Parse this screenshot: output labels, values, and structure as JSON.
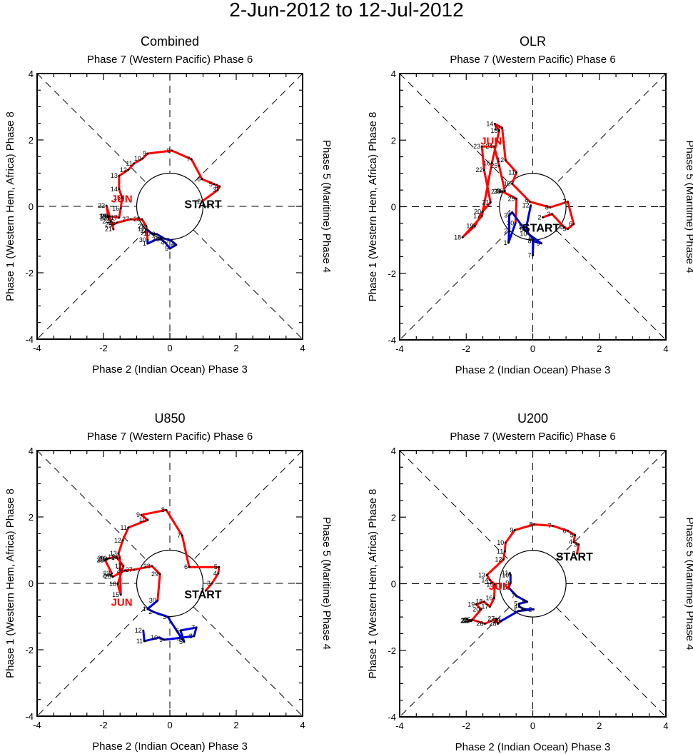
{
  "title": "2-Jun-2012 to 12-Jul-2012",
  "labels": {
    "top": "Phase 7 (Western Pacific) Phase 6",
    "bottom": "Phase 2 (Indian Ocean) Phase 3",
    "left": "Phase 1 (Western Hem, Africa) Phase 8",
    "right": "Phase 5 (Maritime) Phase 4",
    "start": "START",
    "june": "JUN"
  },
  "colors": {
    "june": "#ff0000",
    "july": "#0000dd",
    "axis": "#000000"
  },
  "chart_data": [
    {
      "type": "line",
      "title": "Combined",
      "xlim": [
        -4,
        4
      ],
      "ylim": [
        -4,
        4
      ],
      "xticks": [
        -4,
        -2,
        0,
        2,
        4
      ],
      "yticks": [
        -4,
        -2,
        0,
        2,
        4
      ],
      "june_label_pos": [
        -1.45,
        0.25
      ],
      "start_label_pos": [
        1.0,
        0.1
      ],
      "series": [
        {
          "name": "June",
          "days": [
            2,
            3,
            4,
            5,
            6,
            7,
            8,
            9,
            10,
            11,
            12,
            13,
            14,
            15,
            16,
            17,
            18,
            19,
            20,
            21,
            22,
            23,
            24,
            25,
            26,
            27,
            28,
            29,
            30
          ],
          "x": [
            0.97,
            1.44,
            1.5,
            1.33,
            0.97,
            0.65,
            0.06,
            -0.67,
            -0.82,
            -1.08,
            -1.25,
            -1.53,
            -1.53,
            -1.44,
            -1.48,
            -1.53,
            -1.85,
            -1.88,
            -1.82,
            -1.7,
            -1.91,
            -1.85,
            -1.78,
            -1.7,
            -1.59,
            -1.18,
            -0.84,
            -0.71,
            -0.67
          ],
          "y": [
            0.15,
            0.49,
            0.6,
            0.67,
            0.82,
            1.42,
            1.68,
            1.59,
            1.44,
            1.29,
            1.1,
            0.92,
            0.52,
            0.26,
            -0.06,
            -0.34,
            -0.3,
            -0.3,
            -0.3,
            -0.69,
            0.02,
            -0.35,
            -0.45,
            -0.55,
            -0.49,
            -0.39,
            -0.39,
            -0.6,
            -1.01
          ]
        },
        {
          "name": "July",
          "days": [
            1,
            2,
            3,
            4,
            5,
            6,
            7,
            8,
            9,
            10,
            11,
            12
          ],
          "x": [
            -0.67,
            -0.39,
            -0.26,
            -0.13,
            0.0,
            0.19,
            0.04,
            -0.17,
            -0.39,
            -0.54,
            -0.65,
            -0.71
          ],
          "y": [
            -1.12,
            -0.99,
            -0.99,
            -1.1,
            -1.27,
            -1.16,
            -1.03,
            -0.97,
            -0.84,
            -0.82,
            -0.73,
            -0.69
          ]
        }
      ]
    },
    {
      "type": "line",
      "title": "OLR",
      "xlim": [
        -4,
        4
      ],
      "ylim": [
        -4,
        4
      ],
      "xticks": [
        -4,
        -2,
        0,
        2,
        4
      ],
      "yticks": [
        -4,
        -2,
        0,
        2,
        4
      ],
      "june_label_pos": [
        -1.25,
        2.0
      ],
      "start_label_pos": [
        0.25,
        -0.6
      ],
      "series": [
        {
          "name": "June",
          "days": [
            2,
            3,
            4,
            5,
            6,
            7,
            8,
            9,
            10,
            11,
            12,
            13,
            14,
            15,
            16,
            17,
            18,
            19,
            20,
            21,
            22,
            23,
            24,
            25,
            26,
            27,
            28,
            29,
            30
          ],
          "x": [
            0.3,
            0.58,
            0.95,
            1.05,
            1.23,
            1.05,
            0.52,
            -0.09,
            -0.62,
            -0.49,
            -0.82,
            -0.92,
            -1.14,
            -1.01,
            -1.23,
            -1.53,
            -2.11,
            -1.74,
            -1.51,
            -1.27,
            -1.46,
            -1.53,
            -1.16,
            -1.01,
            -0.84,
            -1.0,
            -0.92,
            -0.49,
            -0.52
          ],
          "y": [
            -0.32,
            -0.22,
            -0.62,
            -0.67,
            -0.52,
            0.15,
            -0.02,
            0.15,
            0.69,
            1.03,
            1.4,
            2.37,
            2.49,
            2.28,
            1.31,
            -0.28,
            -0.92,
            -0.58,
            -0.15,
            0.13,
            1.1,
            1.81,
            1.81,
            1.23,
            0.47,
            0.45,
            0.46,
            0.24,
            -0.49
          ]
        },
        {
          "name": "July",
          "days": [
            1,
            2,
            3,
            4,
            5,
            6,
            7,
            8,
            9,
            10,
            11,
            12
          ],
          "x": [
            -0.73,
            -0.71,
            -0.71,
            -0.62,
            -0.24,
            0.02,
            0.0,
            0.0,
            0.26,
            -0.13,
            -0.19,
            -0.06
          ],
          "y": [
            -1.08,
            -0.73,
            -0.26,
            -0.17,
            -0.69,
            -0.97,
            -1.46,
            -1.03,
            -1.1,
            -0.82,
            -0.6,
            0.04
          ]
        }
      ]
    },
    {
      "type": "line",
      "title": "U850",
      "xlim": [
        -4,
        4
      ],
      "ylim": [
        -4,
        4
      ],
      "xticks": [
        -4,
        -2,
        0,
        2,
        4
      ],
      "yticks": [
        -4,
        -2,
        0,
        2,
        4
      ],
      "june_label_pos": [
        -1.45,
        -0.55
      ],
      "start_label_pos": [
        1.0,
        -0.3
      ],
      "series": [
        {
          "name": "June",
          "days": [
            2,
            3,
            4,
            5,
            6,
            7,
            8,
            9,
            10,
            11,
            12,
            13,
            14,
            15,
            16,
            17,
            18,
            19,
            20,
            21,
            22,
            23,
            24,
            25,
            26,
            27,
            28,
            29,
            30
          ],
          "x": [
            1.08,
            1.27,
            1.46,
            1.48,
            0.58,
            0.37,
            -0.11,
            -0.86,
            -0.67,
            -1.25,
            -1.42,
            -1.55,
            -1.51,
            -1.48,
            -1.57,
            -1.4,
            -1.61,
            -1.85,
            -1.92,
            -1.9,
            -1.95,
            -1.75,
            -1.78,
            -1.72,
            -1.35,
            -1.08,
            -0.54,
            -0.3,
            -0.37
          ],
          "y": [
            -0.22,
            0.0,
            0.3,
            0.49,
            0.49,
            1.44,
            2.21,
            2.06,
            1.91,
            1.68,
            1.29,
            0.9,
            0.77,
            -0.34,
            -0.02,
            0.52,
            0.8,
            0.75,
            0.75,
            0.72,
            0.7,
            0.3,
            0.25,
            0.2,
            0.39,
            0.41,
            0.52,
            0.28,
            -0.52
          ]
        },
        {
          "name": "July",
          "days": [
            1,
            2,
            3,
            4,
            5,
            6,
            7,
            8,
            9,
            10,
            11,
            12
          ],
          "x": [
            -0.67,
            -0.49,
            -0.06,
            0.37,
            0.43,
            0.32,
            0.8,
            0.73,
            -0.17,
            -0.32,
            -0.77,
            -0.8
          ],
          "y": [
            -0.77,
            -0.86,
            -1.01,
            -1.68,
            -1.76,
            -1.42,
            -1.33,
            -1.59,
            -1.7,
            -1.63,
            -1.74,
            -1.42
          ]
        }
      ]
    },
    {
      "type": "line",
      "title": "U200",
      "xlim": [
        -4,
        4
      ],
      "ylim": [
        -4,
        4
      ],
      "xticks": [
        -4,
        -2,
        0,
        2,
        4
      ],
      "yticks": [
        -4,
        -2,
        0,
        2,
        4
      ],
      "june_label_pos": [
        -1.0,
        -0.05
      ],
      "start_label_pos": [
        1.25,
        0.85
      ],
      "series": [
        {
          "name": "June",
          "days": [
            2,
            3,
            4,
            5,
            6,
            7,
            8,
            9,
            10,
            11,
            12,
            13,
            14,
            15,
            16,
            17,
            18,
            19,
            20,
            21,
            22,
            23,
            24,
            25,
            26,
            27,
            28,
            29,
            30
          ],
          "x": [
            1.33,
            1.38,
            1.23,
            1.27,
            1.05,
            0.6,
            0.04,
            -0.54,
            -0.82,
            -0.84,
            -0.88,
            -1.38,
            -1.29,
            -1.14,
            -1.16,
            -1.29,
            -1.46,
            -1.7,
            -1.55,
            -1.85,
            -1.92,
            -1.9,
            -1.88,
            -1.82,
            -1.44,
            -1.1,
            -1.05,
            -0.92,
            -0.95
          ],
          "y": [
            0.9,
            1.18,
            1.25,
            1.46,
            1.59,
            1.74,
            1.78,
            1.61,
            1.23,
            0.97,
            0.73,
            0.26,
            0.11,
            -0.02,
            -0.43,
            -0.69,
            -0.54,
            -0.62,
            -0.77,
            -1.12,
            -1.12,
            -1.1,
            -1.1,
            -1.08,
            -1.2,
            -1.05,
            -1.2,
            -1.1,
            -1.12
          ]
        },
        {
          "name": "July",
          "days": [
            1,
            2,
            3,
            4,
            5,
            6,
            7,
            8,
            9,
            10,
            11
          ],
          "x": [
            -0.43,
            0.02,
            -0.24,
            -0.41,
            -0.41,
            -0.17,
            -0.49,
            -0.73,
            -0.67,
            -0.67,
            -0.69
          ],
          "y": [
            -0.82,
            -0.77,
            -0.77,
            -0.69,
            -0.6,
            -0.54,
            -0.37,
            -0.11,
            0.02,
            0.26,
            0.32
          ]
        }
      ]
    }
  ]
}
